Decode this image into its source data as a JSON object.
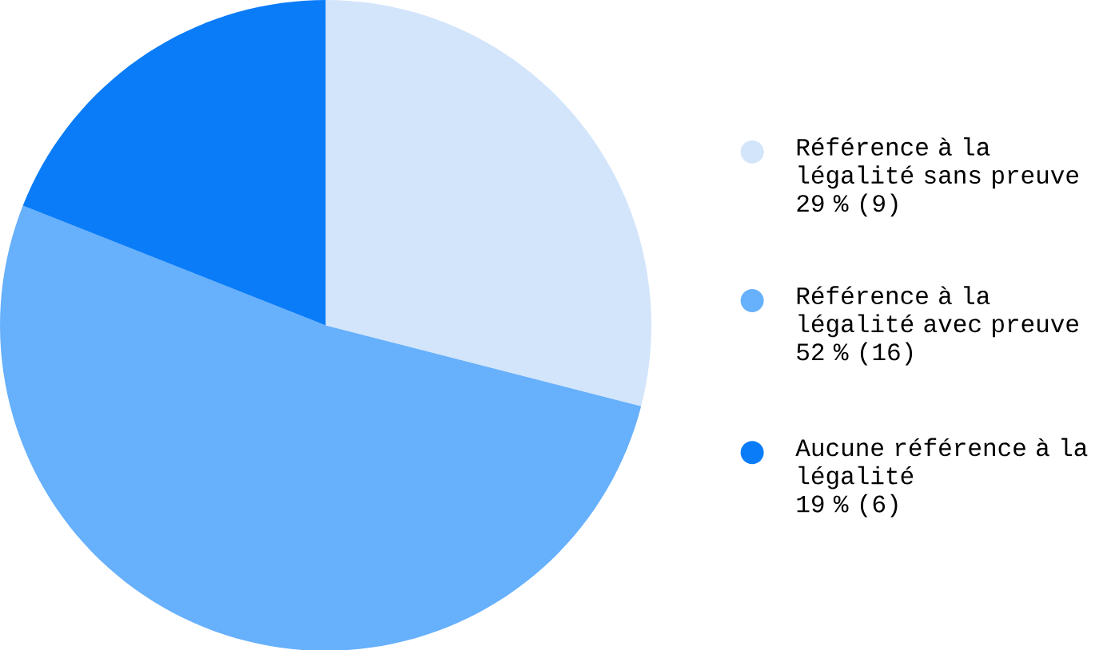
{
  "chart_data": {
    "type": "pie",
    "categories": [
      "Référence à la légalité sans preuve",
      "Référence à la légalité avec preuve",
      "Aucune référence à la légalité"
    ],
    "values": [
      29,
      52,
      19
    ],
    "value_labels": [
      "29 % (9)",
      "52 % (16)",
      "19 % (6)"
    ],
    "colors": [
      "#d3e5fb",
      "#66b0fc",
      "#0a7cf8"
    ],
    "legend": "right"
  }
}
